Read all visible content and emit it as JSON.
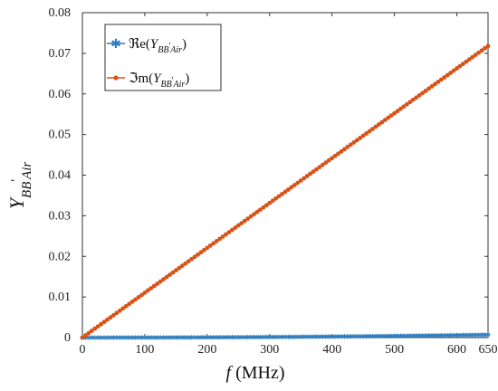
{
  "chart_data": {
    "type": "line",
    "title": "",
    "xlabel": {
      "var": "f",
      "unit": "(MHz)"
    },
    "ylabel": {
      "main": "Y",
      "sub": "BB",
      "prime": "'",
      "sub2": "Air"
    },
    "xlim": [
      0,
      650
    ],
    "ylim": [
      0,
      0.08
    ],
    "xticks": [
      "0",
      "100",
      "200",
      "300",
      "400",
      "500",
      "600",
      "650"
    ],
    "yticks": [
      "0",
      "0.01",
      "0.02",
      "0.03",
      "0.04",
      "0.05",
      "0.06",
      "0.07",
      "0.08"
    ],
    "grid": false,
    "legend_position": "top-left",
    "colors": {
      "real": "#2e7dbf",
      "imag": "#d95319"
    },
    "series": [
      {
        "name": "Re(Y_BB'Air)",
        "legend_prefix": "ℜe(",
        "legend_main": "Y",
        "legend_sub": "BB",
        "legend_prime": "'",
        "legend_sub2": "Air",
        "legend_close": ")",
        "marker": "asterisk",
        "x_start": 0,
        "x_end": 650,
        "points": 131,
        "y_start": 0.0,
        "y_end": 0.0007,
        "curve": "quadratic"
      },
      {
        "name": "Im(Y_BB'Air)",
        "legend_prefix": "ℑm(",
        "legend_main": "Y",
        "legend_sub": "BB",
        "legend_prime": "'",
        "legend_sub2": "Air",
        "legend_close": ")",
        "marker": "circle",
        "x_start": 0,
        "x_end": 650,
        "points": 131,
        "y_start": 0.0,
        "y_end": 0.0718,
        "curve": "linear"
      }
    ]
  }
}
